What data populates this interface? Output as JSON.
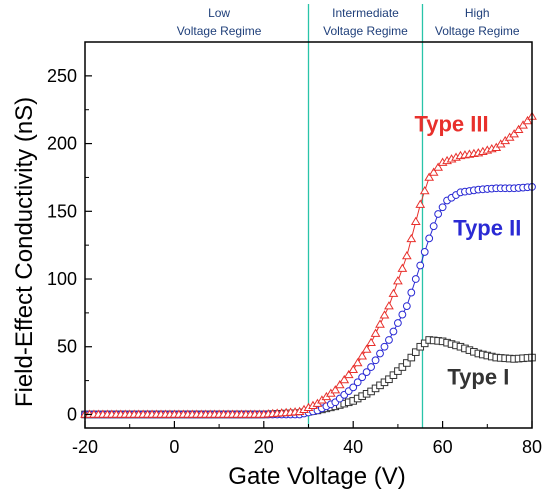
{
  "chart_data": {
    "type": "scatter",
    "title": "",
    "xlabel": "Gate Voltage (V)",
    "ylabel": "Field-Effect Conductivity (nS)",
    "xlim": [
      -20,
      80
    ],
    "ylim": [
      -10,
      275
    ],
    "xticks": [
      -20,
      0,
      20,
      40,
      60,
      80
    ],
    "yticks": [
      0,
      50,
      100,
      150,
      200,
      250
    ],
    "grid": false,
    "legend": "none",
    "regime_boundaries": [
      30,
      55.5
    ],
    "regimes": [
      {
        "line1": "Low",
        "line2": "Voltage Regime",
        "center": 10
      },
      {
        "line1": "Intermediate",
        "line2": "Voltage Regime",
        "center": 42.75
      },
      {
        "line1": "High",
        "line2": "Voltage Regime",
        "center": 67.75
      }
    ],
    "colors": {
      "type_i": "#333333",
      "type_ii": "#2a2ad4",
      "type_iii": "#e8302c",
      "regime_line": "#29c4a9",
      "regime_text": "#1f3f7a"
    },
    "series": [
      {
        "name": "Type I",
        "marker": "square",
        "label_pos": [
          68,
          28
        ],
        "x": [
          -20,
          0,
          20,
          28,
          32,
          36,
          40,
          44,
          48,
          52,
          55,
          57,
          60,
          64,
          68,
          72,
          76,
          80
        ],
        "y": [
          0,
          0,
          0,
          1,
          3,
          6,
          10,
          17,
          26,
          38,
          50,
          55,
          54,
          50,
          45,
          42,
          41,
          42
        ]
      },
      {
        "name": "Type II",
        "marker": "circle",
        "label_pos": [
          70,
          138
        ],
        "x": [
          -20,
          0,
          20,
          28,
          32,
          36,
          40,
          44,
          48,
          52,
          55,
          57,
          59,
          61,
          64,
          68,
          72,
          76,
          80
        ],
        "y": [
          0,
          0,
          0,
          0,
          3,
          9,
          20,
          35,
          55,
          80,
          110,
          130,
          148,
          158,
          164,
          166,
          167,
          167,
          168
        ]
      },
      {
        "name": "Type III",
        "marker": "triangle",
        "label_pos": [
          62,
          215
        ],
        "x": [
          -20,
          0,
          20,
          28,
          32,
          36,
          40,
          44,
          48,
          52,
          55,
          57,
          60,
          64,
          68,
          72,
          76,
          80
        ],
        "y": [
          0,
          0,
          0,
          2,
          8,
          18,
          33,
          53,
          80,
          117,
          155,
          175,
          186,
          191,
          193,
          197,
          207,
          220
        ]
      }
    ]
  }
}
